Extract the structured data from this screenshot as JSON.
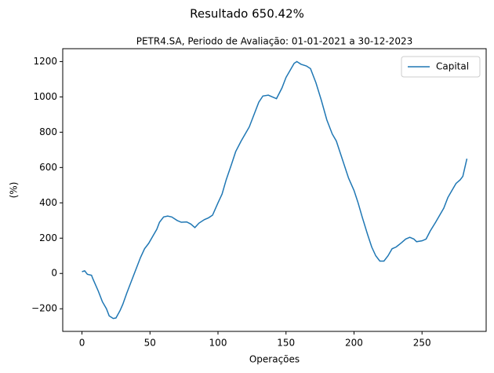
{
  "chart_data": {
    "type": "line",
    "title": "Resultado 650.42%",
    "subtitle": "PETR4.SA, Periodo de Avaliação: 01-01-2021 a 30-12-2023",
    "x_label": "Operações",
    "y_label": "(%)",
    "x": [
      0,
      2,
      4,
      7,
      8,
      12,
      15,
      18,
      20,
      23,
      25,
      28,
      30,
      33,
      36,
      40,
      43,
      46,
      49,
      52,
      55,
      57,
      60,
      63,
      66,
      70,
      73,
      77,
      80,
      83,
      86,
      90,
      93,
      96,
      100,
      103,
      106,
      110,
      113,
      117,
      120,
      123,
      126,
      130,
      133,
      137,
      140,
      143,
      147,
      150,
      153,
      156,
      158,
      161,
      165,
      168,
      172,
      176,
      180,
      184,
      187,
      190,
      193,
      196,
      200,
      203,
      206,
      210,
      213,
      216,
      219,
      222,
      225,
      228,
      231,
      235,
      238,
      241,
      244,
      246,
      250,
      253,
      256,
      260,
      263,
      266,
      269,
      272,
      275,
      278,
      280,
      283
    ],
    "series": [
      {
        "name": "Capital",
        "color": "#1f77b4",
        "values": [
          10,
          15,
          -5,
          -10,
          -30,
          -100,
          -160,
          -200,
          -240,
          -255,
          -252,
          -210,
          -175,
          -110,
          -50,
          30,
          90,
          140,
          170,
          210,
          250,
          290,
          320,
          325,
          320,
          300,
          290,
          292,
          280,
          260,
          285,
          305,
          315,
          330,
          400,
          450,
          530,
          620,
          690,
          750,
          790,
          830,
          890,
          970,
          1005,
          1010,
          1000,
          990,
          1050,
          1110,
          1150,
          1190,
          1200,
          1185,
          1175,
          1160,
          1080,
          980,
          870,
          790,
          750,
          680,
          610,
          540,
          470,
          400,
          320,
          220,
          150,
          100,
          70,
          70,
          100,
          140,
          150,
          175,
          195,
          205,
          195,
          180,
          185,
          195,
          240,
          290,
          330,
          370,
          430,
          470,
          510,
          530,
          550,
          650
        ]
      }
    ],
    "xlim": [
      -14.15,
      297.15
    ],
    "ylim": [
      -328,
      1273
    ],
    "xticks": [
      0,
      50,
      100,
      150,
      200,
      250
    ],
    "yticks": [
      {
        "value": -200,
        "label": "−200"
      },
      0,
      200,
      400,
      600,
      800,
      1000,
      1200
    ],
    "legend": "upper right"
  }
}
